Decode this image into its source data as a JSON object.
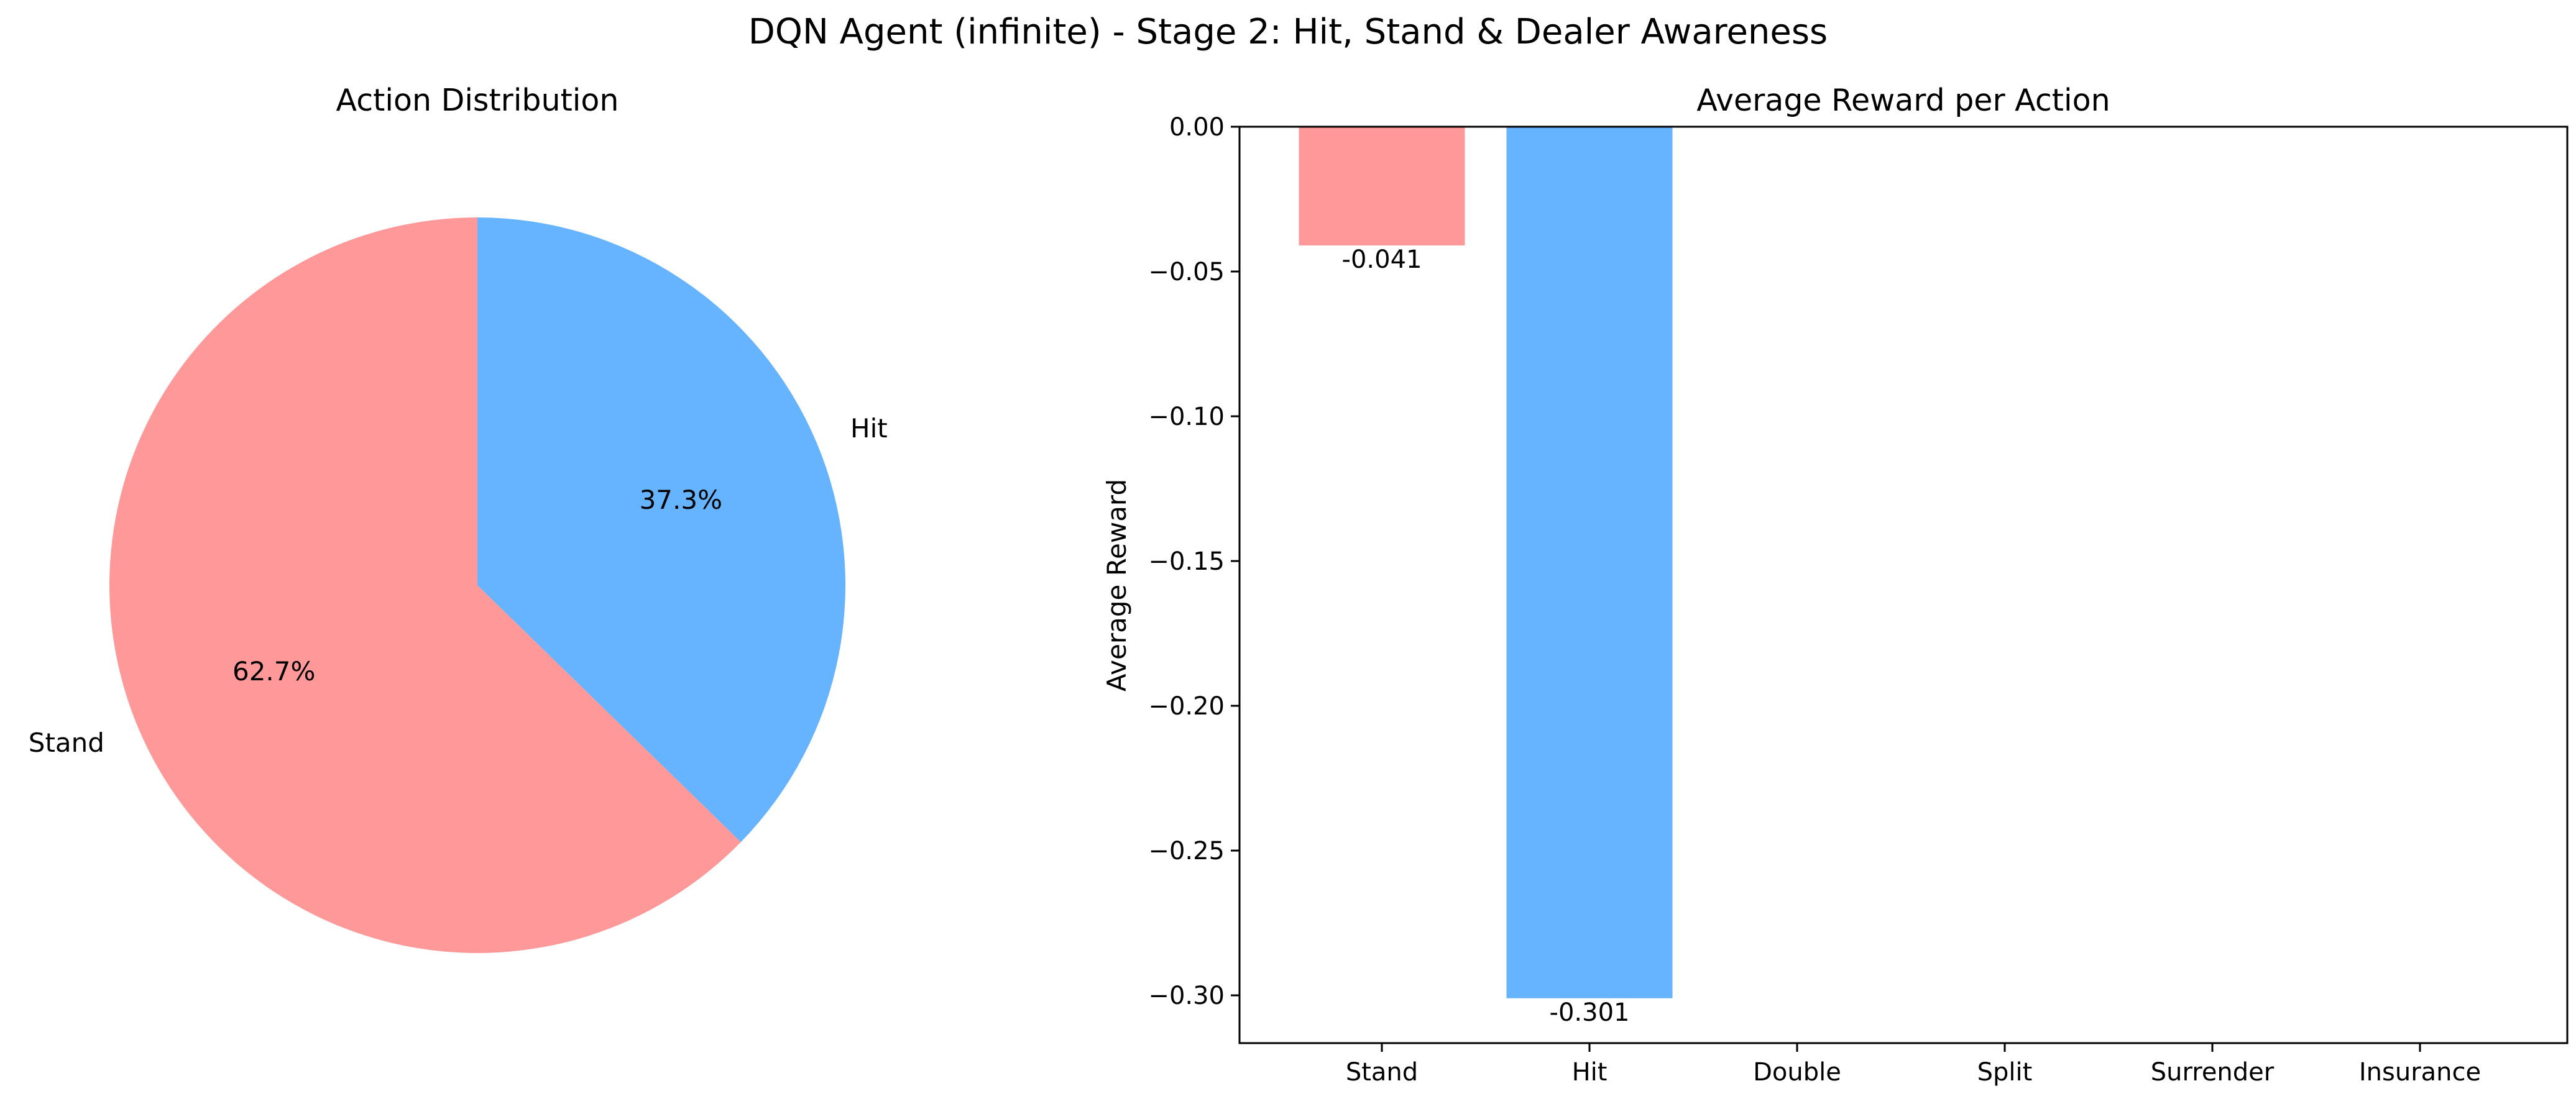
{
  "figure": {
    "suptitle": "DQN Agent (infinite) - Stage 2: Hit, Stand & Dealer Awareness"
  },
  "chart_data": [
    {
      "type": "pie",
      "title": "Action Distribution",
      "labels": [
        "Stand",
        "Hit"
      ],
      "values": [
        62.7,
        37.3
      ],
      "autopct_labels": [
        "62.7%",
        "37.3%"
      ],
      "colors": [
        "#ff9999",
        "#66b3ff"
      ],
      "start_angle_deg": 90,
      "direction": "counterclockwise"
    },
    {
      "type": "bar",
      "title": "Average Reward per Action",
      "xlabel": "",
      "ylabel": "Average Reward",
      "categories": [
        "Stand",
        "Hit",
        "Double",
        "Split",
        "Surrender",
        "Insurance"
      ],
      "values": [
        -0.041,
        -0.301,
        null,
        null,
        null,
        null
      ],
      "value_labels": [
        "-0.041",
        "-0.301",
        "",
        "",
        "",
        ""
      ],
      "colors": [
        "#ff9999",
        "#66b3ff"
      ],
      "ylim": [
        -0.3165,
        0.0
      ],
      "yticks": [
        0.0,
        -0.05,
        -0.1,
        -0.15,
        -0.2,
        -0.25,
        -0.3
      ],
      "ytick_labels": [
        "0.00",
        "−0.05",
        "−0.10",
        "−0.15",
        "−0.20",
        "−0.25",
        "−0.30"
      ],
      "grid": false,
      "legend": "none"
    }
  ]
}
